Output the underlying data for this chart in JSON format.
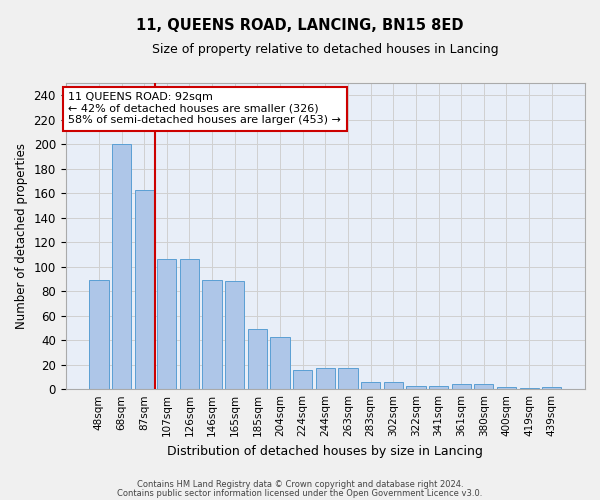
{
  "title": "11, QUEENS ROAD, LANCING, BN15 8ED",
  "subtitle": "Size of property relative to detached houses in Lancing",
  "xlabel": "Distribution of detached houses by size in Lancing",
  "ylabel": "Number of detached properties",
  "categories": [
    "48sqm",
    "68sqm",
    "87sqm",
    "107sqm",
    "126sqm",
    "146sqm",
    "165sqm",
    "185sqm",
    "204sqm",
    "224sqm",
    "244sqm",
    "263sqm",
    "283sqm",
    "302sqm",
    "322sqm",
    "341sqm",
    "361sqm",
    "380sqm",
    "400sqm",
    "419sqm",
    "439sqm"
  ],
  "values": [
    89,
    200,
    163,
    106,
    106,
    89,
    88,
    49,
    43,
    16,
    17,
    17,
    6,
    6,
    3,
    3,
    4,
    4,
    2,
    1,
    2
  ],
  "bar_color": "#aec6e8",
  "bar_edge_color": "#5a9fd4",
  "grid_color": "#d0d0d0",
  "bg_color": "#e8eef8",
  "vline_x": 2.5,
  "vline_color": "#cc0000",
  "annotation_text": "11 QUEENS ROAD: 92sqm\n← 42% of detached houses are smaller (326)\n58% of semi-detached houses are larger (453) →",
  "annotation_box_color": "#ffffff",
  "annotation_box_edge": "#cc0000",
  "ylim": [
    0,
    250
  ],
  "yticks": [
    0,
    20,
    40,
    60,
    80,
    100,
    120,
    140,
    160,
    180,
    200,
    220,
    240
  ],
  "footer1": "Contains HM Land Registry data © Crown copyright and database right 2024.",
  "footer2": "Contains public sector information licensed under the Open Government Licence v3.0."
}
